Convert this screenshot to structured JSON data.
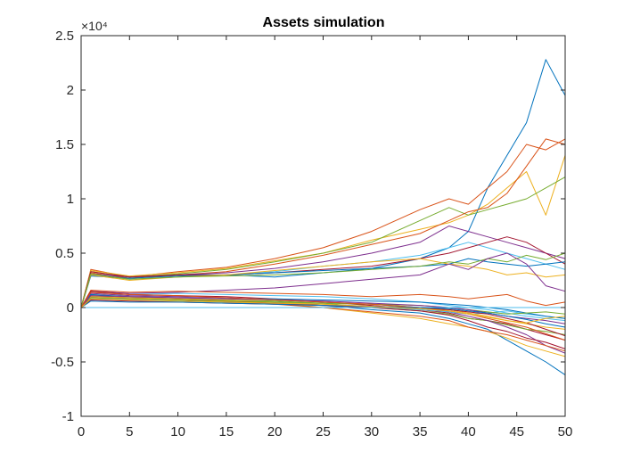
{
  "chart_data": {
    "type": "line",
    "title": "Assets simulation",
    "xlabel": "",
    "ylabel": "",
    "exponent_label": "×10⁴",
    "xlim": [
      0,
      50
    ],
    "ylim": [
      -1,
      2.5
    ],
    "x_ticks": [
      "0",
      "5",
      "10",
      "15",
      "20",
      "25",
      "30",
      "35",
      "40",
      "45",
      "50"
    ],
    "y_ticks": [
      "-1",
      "-0.5",
      "0",
      "0.5",
      "1",
      "1.5",
      "2",
      "2.5"
    ],
    "x_tick_values": [
      0,
      5,
      10,
      15,
      20,
      25,
      30,
      35,
      40,
      45,
      50
    ],
    "y_tick_values": [
      -1,
      -0.5,
      0,
      0.5,
      1,
      1.5,
      2,
      2.5
    ],
    "grid": false,
    "legend": "none",
    "series_colors": [
      "#0072BD",
      "#D95319",
      "#EDB120",
      "#7E2F8E",
      "#77AC30",
      "#4DBEEE",
      "#A2142F"
    ],
    "series": [
      {
        "color": "#0072BD",
        "x": [
          0,
          1,
          5,
          10,
          15,
          20,
          25,
          30,
          35,
          38,
          40,
          42,
          44,
          46,
          48,
          50
        ],
        "values": [
          0,
          0.3,
          0.27,
          0.3,
          0.3,
          0.28,
          0.32,
          0.36,
          0.45,
          0.55,
          0.7,
          1.1,
          1.4,
          1.7,
          2.28,
          1.95
        ]
      },
      {
        "color": "#D95319",
        "x": [
          0,
          1,
          5,
          10,
          15,
          20,
          25,
          30,
          35,
          38,
          40,
          42,
          44,
          46,
          48,
          50
        ],
        "values": [
          0,
          0.35,
          0.28,
          0.33,
          0.37,
          0.45,
          0.55,
          0.7,
          0.9,
          1.0,
          0.95,
          1.1,
          1.25,
          1.5,
          1.45,
          1.55
        ]
      },
      {
        "color": "#EDB120",
        "x": [
          0,
          1,
          5,
          10,
          15,
          20,
          25,
          30,
          35,
          38,
          40,
          42,
          44,
          46,
          48,
          50
        ],
        "values": [
          0,
          0.34,
          0.29,
          0.32,
          0.36,
          0.43,
          0.5,
          0.62,
          0.72,
          0.78,
          0.85,
          0.95,
          1.1,
          1.25,
          0.85,
          1.4
        ]
      },
      {
        "color": "#77AC30",
        "x": [
          0,
          1,
          5,
          10,
          15,
          20,
          25,
          30,
          35,
          38,
          40,
          42,
          44,
          46,
          48,
          50
        ],
        "values": [
          0,
          0.33,
          0.28,
          0.31,
          0.35,
          0.42,
          0.5,
          0.6,
          0.8,
          0.92,
          0.85,
          0.9,
          0.95,
          1.0,
          1.1,
          1.2
        ]
      },
      {
        "color": "#D95319",
        "x": [
          0,
          1,
          5,
          10,
          15,
          20,
          25,
          30,
          35,
          38,
          40,
          42,
          44,
          46,
          48,
          50
        ],
        "values": [
          0,
          0.32,
          0.27,
          0.3,
          0.33,
          0.4,
          0.48,
          0.58,
          0.68,
          0.8,
          0.88,
          0.92,
          1.05,
          1.3,
          1.55,
          1.5
        ]
      },
      {
        "color": "#7E2F8E",
        "x": [
          0,
          1,
          5,
          10,
          15,
          20,
          25,
          30,
          35,
          38,
          40,
          42,
          44,
          46,
          48,
          50
        ],
        "values": [
          0,
          0.31,
          0.28,
          0.3,
          0.32,
          0.36,
          0.42,
          0.5,
          0.6,
          0.75,
          0.7,
          0.65,
          0.6,
          0.55,
          0.5,
          0.45
        ]
      },
      {
        "color": "#4DBEEE",
        "x": [
          0,
          1,
          5,
          10,
          15,
          20,
          25,
          30,
          35,
          38,
          40,
          42,
          44,
          46,
          48,
          50
        ],
        "values": [
          0,
          0.3,
          0.26,
          0.28,
          0.3,
          0.33,
          0.38,
          0.42,
          0.48,
          0.55,
          0.6,
          0.55,
          0.5,
          0.45,
          0.4,
          0.35
        ]
      },
      {
        "color": "#A2142F",
        "x": [
          0,
          1,
          5,
          10,
          15,
          20,
          25,
          30,
          35,
          38,
          40,
          42,
          44,
          46,
          48,
          50
        ],
        "values": [
          0,
          0.33,
          0.28,
          0.3,
          0.3,
          0.32,
          0.35,
          0.38,
          0.45,
          0.5,
          0.55,
          0.6,
          0.65,
          0.6,
          0.5,
          0.4
        ]
      },
      {
        "color": "#0072BD",
        "x": [
          0,
          1,
          5,
          10,
          15,
          20,
          25,
          30,
          35,
          38,
          40,
          42,
          44,
          46,
          48,
          50
        ],
        "values": [
          0,
          0.29,
          0.27,
          0.29,
          0.3,
          0.32,
          0.34,
          0.36,
          0.38,
          0.4,
          0.45,
          0.42,
          0.4,
          0.38,
          0.4,
          0.42
        ]
      },
      {
        "color": "#EDB120",
        "x": [
          0,
          1,
          5,
          10,
          15,
          20,
          25,
          30,
          35,
          38,
          40,
          42,
          44,
          46,
          48,
          50
        ],
        "values": [
          0,
          0.3,
          0.25,
          0.28,
          0.3,
          0.34,
          0.38,
          0.42,
          0.45,
          0.4,
          0.38,
          0.35,
          0.3,
          0.32,
          0.28,
          0.3
        ]
      },
      {
        "color": "#77AC30",
        "x": [
          0,
          1,
          5,
          10,
          15,
          20,
          25,
          30,
          35,
          38,
          40,
          42,
          44,
          46,
          48,
          50
        ],
        "values": [
          0,
          0.31,
          0.26,
          0.28,
          0.29,
          0.3,
          0.32,
          0.35,
          0.38,
          0.42,
          0.4,
          0.45,
          0.42,
          0.48,
          0.44,
          0.5
        ]
      },
      {
        "color": "#7E2F8E",
        "x": [
          0,
          1,
          5,
          10,
          15,
          20,
          25,
          30,
          35,
          38,
          40,
          42,
          44,
          46,
          48,
          50
        ],
        "values": [
          0,
          0.15,
          0.13,
          0.14,
          0.16,
          0.18,
          0.22,
          0.26,
          0.3,
          0.4,
          0.35,
          0.45,
          0.5,
          0.4,
          0.2,
          0.15
        ]
      },
      {
        "color": "#D95319",
        "x": [
          0,
          1,
          5,
          10,
          15,
          20,
          25,
          30,
          35,
          38,
          40,
          42,
          44,
          46,
          48,
          50
        ],
        "values": [
          0,
          0.16,
          0.14,
          0.15,
          0.14,
          0.13,
          0.12,
          0.1,
          0.12,
          0.1,
          0.08,
          0.1,
          0.12,
          0.06,
          0.02,
          0.05
        ]
      },
      {
        "color": "#4DBEEE",
        "x": [
          0,
          1,
          5,
          10,
          15,
          20,
          25,
          30,
          35,
          38,
          40,
          42,
          44,
          46,
          48,
          50
        ],
        "values": [
          0,
          0.14,
          0.12,
          0.13,
          0.12,
          0.11,
          0.1,
          0.08,
          0.05,
          0.02,
          0.0,
          -0.02,
          -0.05,
          -0.08,
          -0.1,
          -0.12
        ]
      },
      {
        "color": "#A2142F",
        "x": [
          0,
          1,
          5,
          10,
          15,
          20,
          25,
          30,
          35,
          38,
          40,
          42,
          44,
          46,
          48,
          50
        ],
        "values": [
          0,
          0.15,
          0.12,
          0.11,
          0.1,
          0.08,
          0.05,
          0.02,
          -0.02,
          -0.05,
          -0.1,
          -0.12,
          -0.15,
          -0.2,
          -0.25,
          -0.3
        ]
      },
      {
        "color": "#0072BD",
        "x": [
          0,
          1,
          5,
          10,
          15,
          20,
          25,
          30,
          35,
          38,
          40,
          42,
          44,
          46,
          48,
          50
        ],
        "values": [
          0,
          0.1,
          0.09,
          0.08,
          0.07,
          0.05,
          0.02,
          -0.02,
          -0.05,
          -0.1,
          -0.15,
          -0.2,
          -0.3,
          -0.4,
          -0.5,
          -0.62
        ]
      },
      {
        "color": "#EDB120",
        "x": [
          0,
          1,
          5,
          10,
          15,
          20,
          25,
          30,
          35,
          38,
          40,
          42,
          44,
          46,
          48,
          50
        ],
        "values": [
          0,
          0.12,
          0.1,
          0.08,
          0.06,
          0.04,
          0.0,
          -0.05,
          -0.1,
          -0.15,
          -0.18,
          -0.22,
          -0.28,
          -0.35,
          -0.4,
          -0.45
        ]
      },
      {
        "color": "#77AC30",
        "x": [
          0,
          1,
          5,
          10,
          15,
          20,
          25,
          30,
          35,
          38,
          40,
          42,
          44,
          46,
          48,
          50
        ],
        "values": [
          0,
          0.11,
          0.09,
          0.08,
          0.07,
          0.06,
          0.04,
          0.0,
          -0.03,
          -0.06,
          -0.1,
          -0.12,
          -0.16,
          -0.2,
          -0.22,
          -0.25
        ]
      },
      {
        "color": "#7E2F8E",
        "x": [
          0,
          1,
          5,
          10,
          15,
          20,
          25,
          30,
          35,
          38,
          40,
          42,
          44,
          46,
          48,
          50
        ],
        "values": [
          0,
          0.13,
          0.11,
          0.1,
          0.09,
          0.07,
          0.05,
          0.03,
          0.0,
          -0.04,
          -0.08,
          -0.12,
          -0.18,
          -0.25,
          -0.35,
          -0.42
        ]
      },
      {
        "color": "#D95319",
        "x": [
          0,
          1,
          5,
          10,
          15,
          20,
          25,
          30,
          35,
          38,
          40,
          42,
          44,
          46,
          48,
          50
        ],
        "values": [
          0,
          0.09,
          0.08,
          0.07,
          0.05,
          0.03,
          0.0,
          -0.04,
          -0.08,
          -0.12,
          -0.18,
          -0.22,
          -0.25,
          -0.3,
          -0.35,
          -0.4
        ]
      },
      {
        "color": "#4DBEEE",
        "x": [
          0,
          1,
          5,
          10,
          15,
          20,
          25,
          30,
          35,
          38,
          40,
          42,
          44,
          46,
          48,
          50
        ],
        "values": [
          0,
          0.08,
          0.07,
          0.06,
          0.05,
          0.04,
          0.02,
          0.0,
          -0.02,
          -0.04,
          -0.06,
          -0.05,
          -0.03,
          -0.06,
          -0.08,
          -0.1
        ]
      },
      {
        "color": "#A2142F",
        "x": [
          0,
          1,
          5,
          10,
          15,
          20,
          25,
          30,
          35,
          38,
          40,
          42,
          44,
          46,
          48,
          50
        ],
        "values": [
          0,
          0.1,
          0.09,
          0.08,
          0.06,
          0.04,
          0.02,
          0.0,
          -0.03,
          -0.07,
          -0.12,
          -0.18,
          -0.22,
          -0.28,
          -0.32,
          -0.38
        ]
      },
      {
        "color": "#0072BD",
        "x": [
          0,
          1,
          5,
          10,
          15,
          20,
          25,
          30,
          35,
          38,
          40,
          42,
          44,
          46,
          48,
          50
        ],
        "values": [
          0,
          0.12,
          0.1,
          0.09,
          0.08,
          0.08,
          0.07,
          0.06,
          0.05,
          0.03,
          0.02,
          0.0,
          -0.02,
          -0.05,
          -0.08,
          -0.1
        ]
      },
      {
        "color": "#EDB120",
        "x": [
          0,
          1,
          5,
          10,
          15,
          20,
          25,
          30,
          35,
          38,
          40,
          42,
          44,
          46,
          48,
          50
        ],
        "values": [
          0,
          0.1,
          0.09,
          0.08,
          0.07,
          0.05,
          0.03,
          0.01,
          -0.01,
          -0.02,
          -0.05,
          -0.08,
          -0.12,
          -0.15,
          -0.18,
          -0.2
        ]
      },
      {
        "color": "#77AC30",
        "x": [
          0,
          1,
          5,
          10,
          15,
          20,
          25,
          30,
          35,
          38,
          40,
          42,
          44,
          46,
          48,
          50
        ],
        "values": [
          0,
          0.09,
          0.08,
          0.07,
          0.06,
          0.05,
          0.04,
          0.03,
          0.02,
          0.0,
          -0.02,
          -0.04,
          -0.06,
          -0.05,
          -0.04,
          -0.06
        ]
      },
      {
        "color": "#7E2F8E",
        "x": [
          0,
          1,
          5,
          10,
          15,
          20,
          25,
          30,
          35,
          38,
          40,
          42,
          44,
          46,
          48,
          50
        ],
        "values": [
          0,
          0.11,
          0.1,
          0.09,
          0.08,
          0.07,
          0.06,
          0.04,
          0.02,
          0.0,
          -0.02,
          -0.05,
          -0.08,
          -0.1,
          -0.12,
          -0.15
        ]
      },
      {
        "color": "#D95319",
        "x": [
          0,
          1,
          5,
          10,
          15,
          20,
          25,
          30,
          35,
          38,
          40,
          42,
          44,
          46,
          48,
          50
        ],
        "values": [
          0,
          0.14,
          0.12,
          0.11,
          0.09,
          0.07,
          0.05,
          0.03,
          0.0,
          -0.03,
          -0.06,
          -0.1,
          -0.14,
          -0.18,
          -0.24,
          -0.3
        ]
      },
      {
        "color": "#4DBEEE",
        "x": [
          0,
          1,
          5,
          10,
          15,
          20,
          25,
          30,
          35,
          38,
          40,
          42,
          44,
          46,
          48,
          50
        ],
        "values": [
          0,
          0.0,
          0.0,
          0.0,
          0.0,
          0.0,
          0.0,
          0.0,
          0.0,
          0.0,
          0.0,
          0.0,
          0.0,
          0.0,
          0.0,
          0.0
        ]
      },
      {
        "color": "#A2142F",
        "x": [
          0,
          1,
          5,
          10,
          15,
          20,
          25,
          30,
          35,
          38,
          40,
          42,
          44,
          46,
          48,
          50
        ],
        "values": [
          0,
          0.07,
          0.06,
          0.05,
          0.04,
          0.03,
          0.02,
          0.01,
          0.0,
          -0.02,
          -0.04,
          -0.06,
          -0.1,
          -0.14,
          -0.2,
          -0.26
        ]
      },
      {
        "color": "#0072BD",
        "x": [
          0,
          1,
          5,
          10,
          15,
          20,
          25,
          30,
          35,
          38,
          40,
          42,
          44,
          46,
          48,
          50
        ],
        "values": [
          0,
          0.06,
          0.05,
          0.05,
          0.04,
          0.03,
          0.02,
          0.01,
          0.0,
          -0.01,
          -0.03,
          -0.05,
          -0.08,
          -0.11,
          -0.15,
          -0.18
        ]
      },
      {
        "color": "#EDB120",
        "x": [
          0,
          1,
          5,
          10,
          15,
          20,
          25,
          30,
          35,
          38,
          40,
          42,
          44,
          46,
          48,
          50
        ],
        "values": [
          0,
          0.08,
          0.07,
          0.06,
          0.05,
          0.04,
          0.03,
          0.01,
          -0.01,
          -0.03,
          -0.06,
          -0.09,
          -0.12,
          -0.14,
          -0.1,
          -0.08
        ]
      }
    ]
  }
}
